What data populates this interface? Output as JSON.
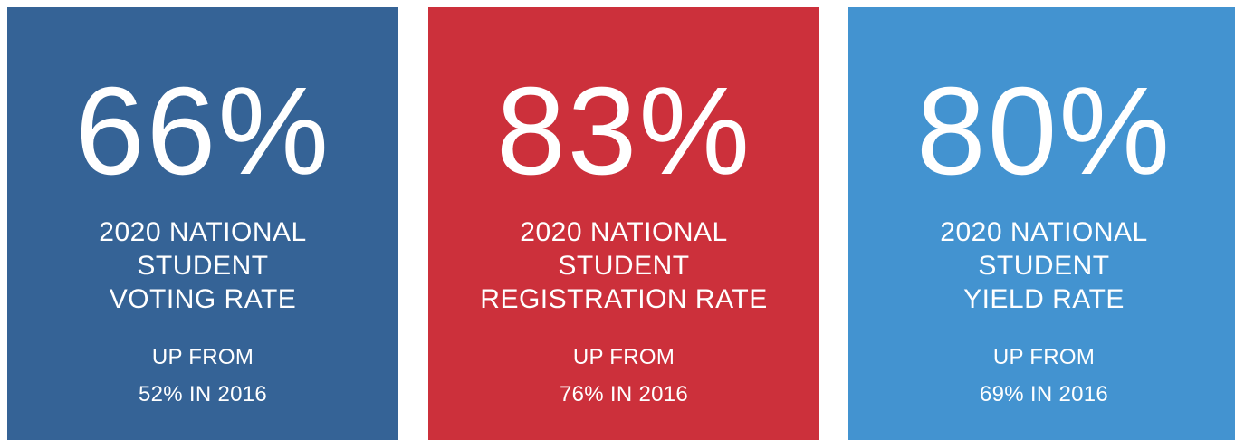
{
  "cards": [
    {
      "stat": "66%",
      "label": [
        "2020 NATIONAL",
        "STUDENT",
        "VOTING RATE"
      ],
      "sub": [
        "UP FROM",
        "52% IN 2016"
      ],
      "color": "#356396"
    },
    {
      "stat": "83%",
      "label": [
        "2020 NATIONAL",
        "STUDENT",
        "REGISTRATION RATE"
      ],
      "sub": [
        "UP FROM",
        "76% IN 2016"
      ],
      "color": "#cc303b"
    },
    {
      "stat": "80%",
      "label": [
        "2020 NATIONAL",
        "STUDENT",
        "YIELD RATE"
      ],
      "sub": [
        "UP FROM",
        "69% IN 2016"
      ],
      "color": "#4393d0"
    }
  ]
}
